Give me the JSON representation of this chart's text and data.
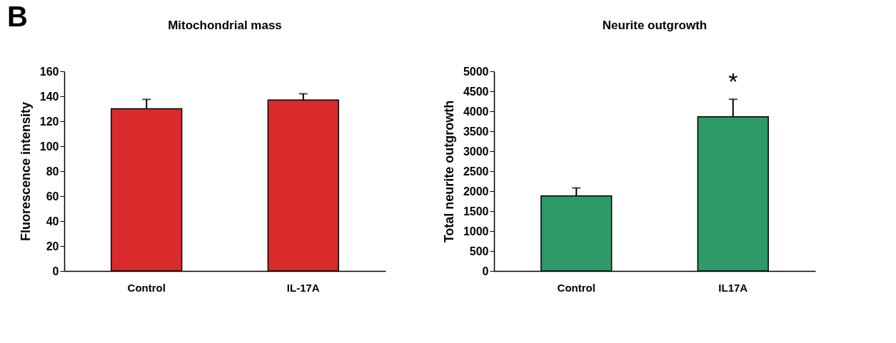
{
  "chart_data": [
    {
      "type": "bar",
      "title": "Mitochondrial mass",
      "ylabel": "Fluorescence intensity",
      "categories": [
        "Control",
        "IL-17A"
      ],
      "values": [
        130,
        137
      ],
      "errors": [
        7.5,
        5
      ],
      "color": "#d92b2b",
      "ylim": [
        0,
        160
      ],
      "yticks": [
        0,
        20,
        40,
        60,
        80,
        100,
        120,
        140,
        160
      ],
      "grid": false,
      "annotations": [
        "B"
      ]
    },
    {
      "type": "bar",
      "title": "Neurite outgrowth",
      "ylabel": "Total neurite outgrowth",
      "categories": [
        "Control",
        "IL17A"
      ],
      "values": [
        1880,
        3860
      ],
      "errors": [
        200,
        440
      ],
      "color": "#2e9a68",
      "ylim": [
        0,
        5000
      ],
      "yticks": [
        0,
        500,
        1000,
        1500,
        2000,
        2500,
        3000,
        3500,
        4000,
        4500,
        5000
      ],
      "grid": false,
      "annotations": [
        {
          "text": "*",
          "x": "IL17A",
          "y": 4300
        }
      ]
    }
  ]
}
